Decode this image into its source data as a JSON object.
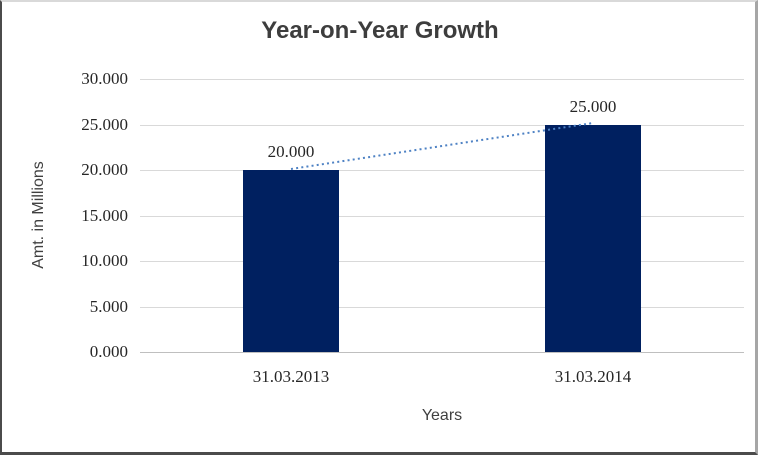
{
  "chart_data": {
    "type": "bar",
    "title": "Year-on-Year Growth",
    "xlabel": "Years",
    "ylabel": "Amt. in Millions",
    "categories": [
      "31.03.2013",
      "31.03.2014"
    ],
    "values": [
      20,
      25
    ],
    "data_labels": [
      "20.000",
      "25.000"
    ],
    "ylim": [
      0,
      30
    ],
    "y_ticks": [
      {
        "value": 0,
        "label": "0.000"
      },
      {
        "value": 5,
        "label": "5.000"
      },
      {
        "value": 10,
        "label": "10.000"
      },
      {
        "value": 15,
        "label": "15.000"
      },
      {
        "value": 20,
        "label": "20.000"
      },
      {
        "value": 25,
        "label": "25.000"
      },
      {
        "value": 30,
        "label": "30.000"
      }
    ],
    "grid": true,
    "legend_position": "none",
    "bar_color": "#002060",
    "trendline": {
      "type": "linear",
      "style": "dotted",
      "color": "#4e82c4",
      "from_value": 20,
      "to_value": 25
    }
  }
}
